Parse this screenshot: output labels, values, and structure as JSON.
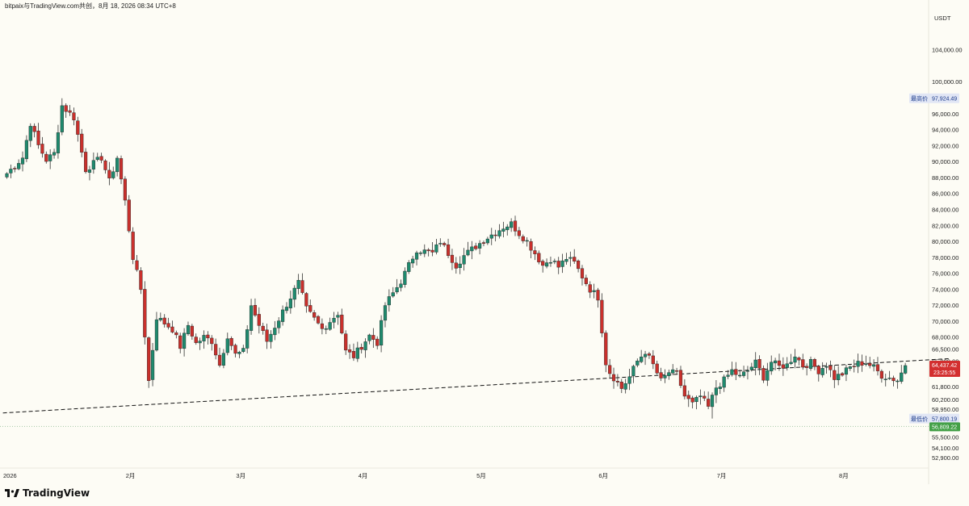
{
  "header": {
    "title": "bitpaix与TradingView.com共创，8月 18, 2026 08:34 UTC+8"
  },
  "brand": {
    "name": "TradingView",
    "icon": "tradingview-logo-icon"
  },
  "colors": {
    "up": "#1f8a6e",
    "down": "#c9302c",
    "background": "#fdfcf5",
    "high_tag_bg": "#e1e6f5",
    "high_tag_text": "#1a3a8a",
    "last_price_bg": "#d32f2f",
    "lowest_bg": "#43a047",
    "trendline": "#111111"
  },
  "chart_data": {
    "type": "candlestick",
    "title": "",
    "ylabel": "USDT",
    "ylim": [
      52100,
      107200
    ],
    "y_ticks": [
      104000,
      100000,
      96000,
      94000,
      92000,
      90000,
      88000,
      86000,
      84000,
      82000,
      80000,
      78000,
      76000,
      74000,
      72000,
      70000,
      68000,
      66500,
      65000,
      61800,
      60200,
      58950,
      55500,
      54100,
      52900
    ],
    "y_tick_labels": [
      "104,000.00",
      "100,000.00",
      "96,000.00",
      "94,000.00",
      "92,000.00",
      "90,000.00",
      "88,000.00",
      "86,000.00",
      "84,000.00",
      "82,000.00",
      "80,000.00",
      "78,000.00",
      "76,000.00",
      "74,000.00",
      "72,000.00",
      "70,000.00",
      "68,000.00",
      "66,500.00",
      "65,000.00",
      "61,800.00",
      "60,200.00",
      "58,950.00",
      "55,500.00",
      "54,100.00",
      "52,900.00"
    ],
    "x_tick_labels": [
      {
        "label": "2026",
        "bar": 0
      },
      {
        "label": "2月",
        "bar": 31
      },
      {
        "label": "3月",
        "bar": 59
      },
      {
        "label": "4月",
        "bar": 90
      },
      {
        "label": "5月",
        "bar": 120
      },
      {
        "label": "6月",
        "bar": 151
      },
      {
        "label": "7月",
        "bar": 181
      },
      {
        "label": "8月",
        "bar": 212
      }
    ],
    "num_bars": 230,
    "keypoints": [
      [
        0,
        88500
      ],
      [
        4,
        90500
      ],
      [
        6,
        94800
      ],
      [
        8,
        92000
      ],
      [
        10,
        90200
      ],
      [
        12,
        91000
      ],
      [
        14,
        97000
      ],
      [
        17,
        95500
      ],
      [
        20,
        89000
      ],
      [
        24,
        90500
      ],
      [
        26,
        87500
      ],
      [
        28,
        90500
      ],
      [
        30,
        85000
      ],
      [
        32,
        78000
      ],
      [
        34,
        74000
      ],
      [
        36,
        62500
      ],
      [
        38,
        70500
      ],
      [
        42,
        69000
      ],
      [
        44,
        66800
      ],
      [
        46,
        69500
      ],
      [
        48,
        67200
      ],
      [
        50,
        68000
      ],
      [
        52,
        67500
      ],
      [
        54,
        64500
      ],
      [
        56,
        68200
      ],
      [
        58,
        65800
      ],
      [
        60,
        66200
      ],
      [
        62,
        72000
      ],
      [
        64,
        69500
      ],
      [
        66,
        67500
      ],
      [
        70,
        71200
      ],
      [
        74,
        74800
      ],
      [
        76,
        71500
      ],
      [
        80,
        69000
      ],
      [
        84,
        71000
      ],
      [
        86,
        66200
      ],
      [
        88,
        65600
      ],
      [
        92,
        68200
      ],
      [
        94,
        67300
      ],
      [
        96,
        72000
      ],
      [
        100,
        75000
      ],
      [
        104,
        79000
      ],
      [
        108,
        78500
      ],
      [
        110,
        80000
      ],
      [
        114,
        77000
      ],
      [
        116,
        78200
      ],
      [
        118,
        79000
      ],
      [
        122,
        80500
      ],
      [
        126,
        81800
      ],
      [
        128,
        82200
      ],
      [
        130,
        81000
      ],
      [
        132,
        80000
      ],
      [
        134,
        78500
      ],
      [
        136,
        77000
      ],
      [
        138,
        77800
      ],
      [
        140,
        76800
      ],
      [
        142,
        77900
      ],
      [
        144,
        77300
      ],
      [
        146,
        75600
      ],
      [
        148,
        74000
      ],
      [
        150,
        73000
      ],
      [
        152,
        64800
      ],
      [
        153,
        63600
      ],
      [
        156,
        61600
      ],
      [
        158,
        63000
      ],
      [
        160,
        65000
      ],
      [
        162,
        66200
      ],
      [
        164,
        64500
      ],
      [
        166,
        62500
      ],
      [
        168,
        63600
      ],
      [
        170,
        63400
      ],
      [
        172,
        60600
      ],
      [
        174,
        59600
      ],
      [
        176,
        60600
      ],
      [
        178,
        59200
      ],
      [
        180,
        61700
      ],
      [
        182,
        62600
      ],
      [
        184,
        63800
      ],
      [
        186,
        63000
      ],
      [
        188,
        63800
      ],
      [
        190,
        64800
      ],
      [
        192,
        63000
      ],
      [
        194,
        64900
      ],
      [
        196,
        64300
      ],
      [
        198,
        64500
      ],
      [
        200,
        65800
      ],
      [
        202,
        64400
      ],
      [
        204,
        64800
      ],
      [
        206,
        63800
      ],
      [
        208,
        64600
      ],
      [
        210,
        62900
      ],
      [
        212,
        63400
      ],
      [
        214,
        64200
      ],
      [
        216,
        64700
      ],
      [
        218,
        64800
      ],
      [
        220,
        64200
      ],
      [
        222,
        63200
      ],
      [
        224,
        62900
      ],
      [
        226,
        62600
      ],
      [
        228,
        64437
      ]
    ],
    "trendline": {
      "style": "dashed",
      "from": [
        -1,
        58500
      ],
      "to": [
        239,
        65300
      ]
    },
    "range_high": {
      "label": "最高价",
      "value_label": "97,924.49",
      "value": 97924.49
    },
    "range_low": {
      "label": "最低价",
      "value_label": "57,800.19",
      "value": 57800.19
    },
    "last_price": {
      "value_label": "64,437.42",
      "countdown": "23:25:55",
      "value": 64437.42
    },
    "lowest_line": {
      "value_label": "56,809.22",
      "value": 56809.22,
      "style": "dotted"
    },
    "grid": false,
    "legend": "none"
  }
}
